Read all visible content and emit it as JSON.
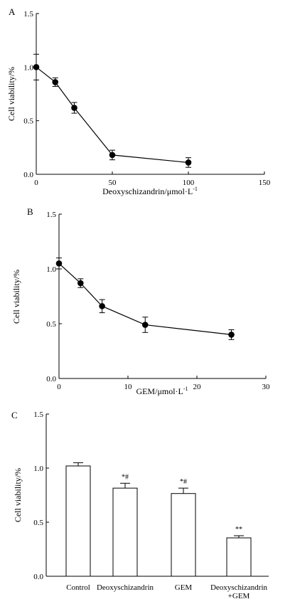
{
  "chart_data": [
    {
      "panel_label": "A",
      "type": "line",
      "xlabel": "Deoxyschizandrin/μmol·L",
      "xlabel_sup": "-1",
      "ylabel": "Cell viability/%",
      "xlim": [
        0,
        150
      ],
      "ylim": [
        0,
        1.5
      ],
      "xticks": [
        "0",
        "50",
        "100",
        "150"
      ],
      "yticks": [
        "0.0",
        "0.5",
        "1.0",
        "1.5"
      ],
      "x": [
        0,
        12.5,
        25,
        50,
        100
      ],
      "y": [
        1.0,
        0.86,
        0.62,
        0.18,
        0.11
      ],
      "err": [
        0.12,
        0.04,
        0.05,
        0.045,
        0.045
      ]
    },
    {
      "panel_label": "B",
      "type": "line",
      "xlabel": "GEM/μmol·L",
      "xlabel_sup": "-1",
      "ylabel": "Cell viability/%",
      "xlim": [
        0,
        30
      ],
      "ylim": [
        0,
        1.5
      ],
      "xticks": [
        "0",
        "10",
        "20",
        "30"
      ],
      "yticks": [
        "0.0",
        "0.5",
        "1.0",
        "1.5"
      ],
      "x": [
        0,
        3.125,
        6.25,
        12.5,
        25
      ],
      "y": [
        1.05,
        0.87,
        0.66,
        0.49,
        0.4
      ],
      "err": [
        0.05,
        0.04,
        0.06,
        0.07,
        0.045
      ]
    },
    {
      "panel_label": "C",
      "type": "bar",
      "ylabel": "Cell viability/%",
      "ylim": [
        0,
        1.5
      ],
      "yticks": [
        "0.0",
        "0.5",
        "1.0",
        "1.5"
      ],
      "categories": [
        [
          "Control"
        ],
        [
          "Deoxyschizandrin"
        ],
        [
          "GEM"
        ],
        [
          "Deoxyschizandrin",
          "+GEM"
        ]
      ],
      "values": [
        1.02,
        0.815,
        0.765,
        0.355
      ],
      "err": [
        0.03,
        0.045,
        0.05,
        0.02
      ],
      "annotations": [
        "",
        "*#",
        "*#",
        "**"
      ]
    }
  ]
}
